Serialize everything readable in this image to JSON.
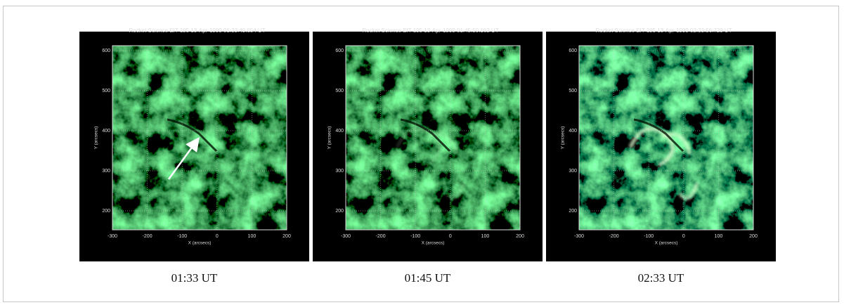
{
  "panels": [
    {
      "title": "Rocket Science EIT 195 13-Apr-1999 01:33:49.654 UT",
      "caption": "01:33 UT",
      "xlabel": "X (arcsecs)",
      "ylabel": "Y (arcsecs)",
      "xticks": [
        -300,
        -200,
        -100,
        0,
        100,
        200
      ],
      "yticks": [
        200,
        300,
        400,
        500,
        600
      ]
    },
    {
      "title": "Rocket Science EIT 195 13-Apr-1999 01:45:50.162 UT",
      "caption": "01:45 UT",
      "xlabel": "X (arcsecs)",
      "ylabel": "Y (arcsecs)",
      "xticks": [
        -300,
        -200,
        -100,
        0,
        100,
        200
      ],
      "yticks": [
        200,
        300,
        400,
        500,
        600
      ]
    },
    {
      "title": "Rocket Science EIT 195 13-Apr-1999 02:33:56.729 UT",
      "caption": "02:33 UT",
      "xlabel": "X (arcsecs)",
      "ylabel": "Y (arcsecs)",
      "xticks": [
        -300,
        -200,
        -100,
        0,
        100,
        200
      ],
      "yticks": [
        200,
        300,
        400,
        500,
        600
      ]
    }
  ]
}
